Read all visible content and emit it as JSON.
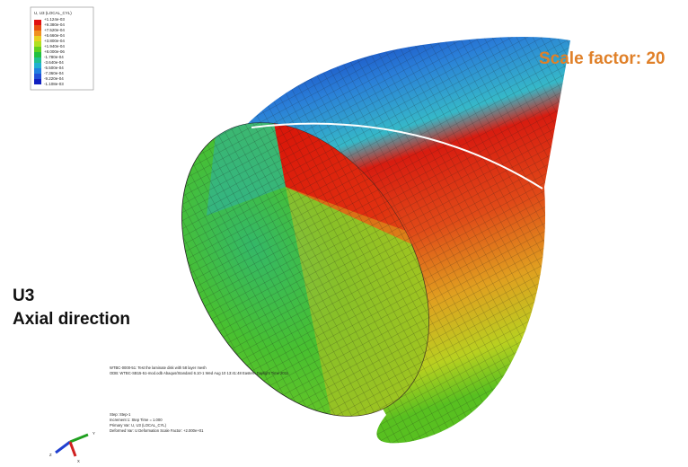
{
  "legend": {
    "title": "U, U3 (LOCAL_CYL)",
    "labels": [
      "+1.124e-03",
      "+9.380e-04",
      "+7.520e-04",
      "+5.660e-04",
      "+3.800e-04",
      "+1.940e-04",
      "+8.000e-06",
      "-1.780e-04",
      "-3.640e-04",
      "-5.500e-04",
      "-7.360e-04",
      "-9.220e-04",
      "-1.108e-03"
    ]
  },
  "annotations": {
    "scale_factor": "Scale factor: 20",
    "variable": "U3",
    "direction": "Axial direction"
  },
  "info": {
    "lines": [
      "WTBC-0000-51: Test the laminate disk with 58 layer mesh",
      "ODB: WTBC-SB15-51-mod.odb    Abaqus/Standard 6.10-1    Wed Aug 10 13:41:48 Eastern Daylight Time 2011"
    ],
    "step_lines": [
      "Step: Step-1",
      "Increment     1: Step Time =     1.000",
      "Primary Var: U, U3 (LOCAL_CYL)",
      "Deformed Var: U   Deformation Scale Factor: +2.000e+01"
    ]
  },
  "triad": {
    "y": "Y",
    "z": "Z",
    "x": "X"
  }
}
